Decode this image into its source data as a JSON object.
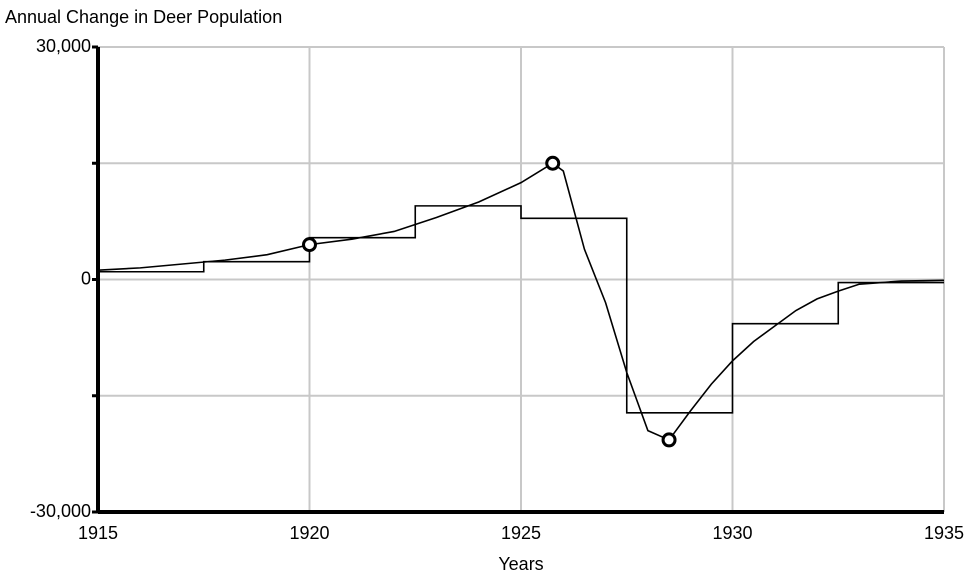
{
  "chart_data": {
    "type": "line",
    "title": "Annual Change in Deer Population",
    "xlabel": "Years",
    "xlim": [
      1915,
      1935
    ],
    "xticks": [
      1915,
      1920,
      1925,
      1930,
      1935
    ],
    "ylim": [
      -30000,
      30000
    ],
    "yticks": [
      {
        "value": -30000,
        "label": "-30,000"
      },
      {
        "value": -15000,
        "label": null
      },
      0,
      {
        "value": 15000,
        "label": null
      },
      {
        "value": 30000,
        "label": "30,000"
      }
    ],
    "grid": true,
    "series": [
      {
        "color": "#000000",
        "step": true,
        "x": [
          1915,
          1917.5,
          1920,
          1922.5,
          1925,
          1927.5,
          1930,
          1932.5
        ],
        "values": [
          1000,
          2300,
          5400,
          9500,
          7900,
          -17200,
          -5700,
          -400
        ]
      },
      {
        "color": "#000000",
        "step": false,
        "x": [
          1915,
          1916,
          1917,
          1918,
          1919,
          1920,
          1921,
          1922,
          1923,
          1924,
          1925,
          1925.75,
          1926,
          1926.5,
          1927,
          1927.5,
          1928,
          1928.5,
          1929,
          1929.5,
          1930,
          1930.5,
          1931,
          1931.5,
          1932,
          1932.5,
          1933,
          1934,
          1935
        ],
        "values": [
          1200,
          1500,
          2000,
          2500,
          3200,
          4500,
          5200,
          6200,
          8000,
          10000,
          12500,
          15000,
          14000,
          3900,
          -3000,
          -12000,
          -19500,
          -20700,
          -17000,
          -13500,
          -10500,
          -8000,
          -6000,
          -4000,
          -2500,
          -1500,
          -600,
          -200,
          -100
        ]
      }
    ],
    "markers": {
      "x": [
        1920,
        1925.75,
        1928.5
      ],
      "values": [
        4500,
        15000,
        -20700
      ]
    }
  }
}
